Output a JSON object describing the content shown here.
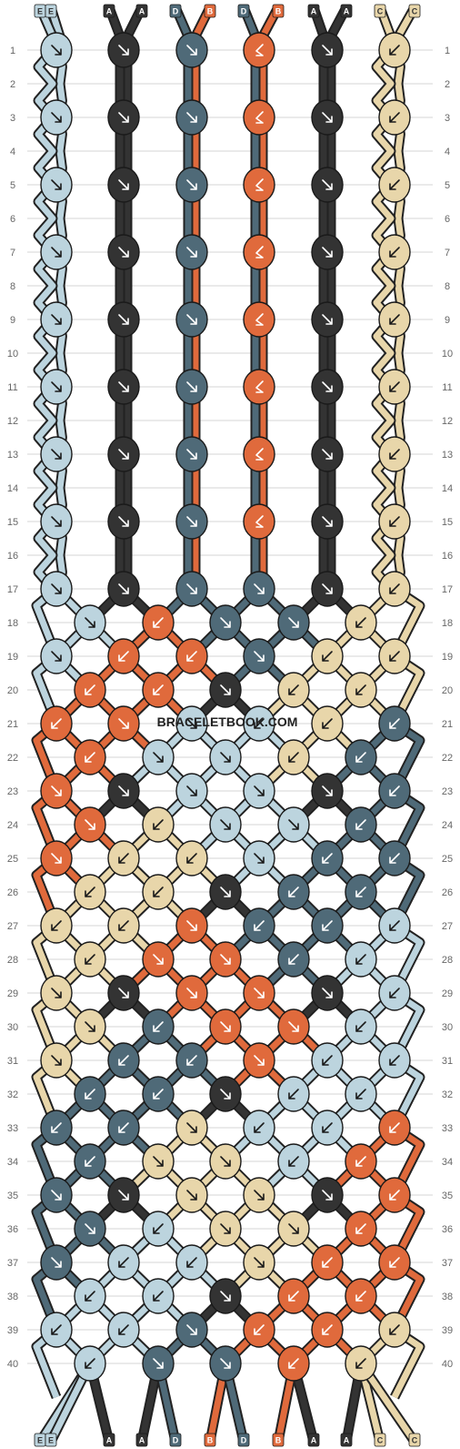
{
  "watermark": "BRACELETBOOK.COM",
  "colors": {
    "E": "#bcd4de",
    "A": "#333333",
    "D": "#4f6a78",
    "B": "#e06a3c",
    "C": "#e8d6aa"
  },
  "strands_top": [
    "E",
    "E",
    "A",
    "A",
    "D",
    "B",
    "D",
    "B",
    "A",
    "A",
    "C",
    "C"
  ],
  "strands_bottom": [
    "E",
    "E",
    "A",
    "A",
    "D",
    "B",
    "D",
    "B",
    "A",
    "A",
    "C",
    "C"
  ],
  "rows": [
    "1",
    "2",
    "3",
    "4",
    "5",
    "6",
    "7",
    "8",
    "9",
    "10",
    "11",
    "12",
    "13",
    "14",
    "15",
    "16",
    "17",
    "18",
    "19",
    "20",
    "21",
    "22",
    "23",
    "24",
    "25",
    "26",
    "27",
    "28",
    "29",
    "30",
    "31",
    "32",
    "33",
    "34",
    "35",
    "36",
    "37",
    "38",
    "39",
    "40"
  ],
  "top_section": {
    "knot_columns": [
      "E",
      "A",
      "D",
      "B",
      "A",
      "C"
    ],
    "directions": [
      "f",
      "f",
      "f",
      "fb",
      "f",
      "b"
    ]
  },
  "knot_rows": {
    "17": [
      [
        "E",
        "f"
      ],
      [
        "A",
        "f"
      ],
      [
        "D",
        "f"
      ],
      [
        "D",
        "f"
      ],
      [
        "A",
        "f"
      ],
      [
        "C",
        "b"
      ]
    ],
    "18": [
      [
        "E",
        "f"
      ],
      [
        "B",
        "b"
      ],
      [
        "D",
        "f"
      ],
      [
        "D",
        "f"
      ],
      [
        "C",
        "b"
      ]
    ],
    "19": [
      [
        "E",
        "f"
      ],
      [
        "B",
        "b"
      ],
      [
        "B",
        "b"
      ],
      [
        "D",
        "f"
      ],
      [
        "C",
        "b"
      ],
      [
        "C",
        "b"
      ]
    ],
    "20": [
      [
        "B",
        "b"
      ],
      [
        "B",
        "b"
      ],
      [
        "A",
        "f"
      ],
      [
        "C",
        "b"
      ],
      [
        "C",
        "b"
      ]
    ],
    "21": [
      [
        "B",
        "b"
      ],
      [
        "B",
        "f"
      ],
      [
        "E",
        "f"
      ],
      [
        "E",
        "b"
      ],
      [
        "C",
        "b"
      ],
      [
        "D",
        "b"
      ]
    ],
    "22": [
      [
        "B",
        "b"
      ],
      [
        "E",
        "f"
      ],
      [
        "E",
        "f"
      ],
      [
        "C",
        "b"
      ],
      [
        "D",
        "b"
      ]
    ],
    "23": [
      [
        "B",
        "f"
      ],
      [
        "A",
        "f"
      ],
      [
        "E",
        "f"
      ],
      [
        "E",
        "f"
      ],
      [
        "A",
        "f"
      ],
      [
        "D",
        "b"
      ]
    ],
    "24": [
      [
        "B",
        "f"
      ],
      [
        "C",
        "b"
      ],
      [
        "E",
        "f"
      ],
      [
        "E",
        "f"
      ],
      [
        "D",
        "b"
      ]
    ],
    "25": [
      [
        "B",
        "f"
      ],
      [
        "C",
        "b"
      ],
      [
        "C",
        "b"
      ],
      [
        "E",
        "f"
      ],
      [
        "D",
        "b"
      ],
      [
        "D",
        "b"
      ]
    ],
    "26": [
      [
        "C",
        "b"
      ],
      [
        "C",
        "b"
      ],
      [
        "A",
        "f"
      ],
      [
        "D",
        "b"
      ],
      [
        "D",
        "b"
      ]
    ],
    "27": [
      [
        "C",
        "b"
      ],
      [
        "C",
        "b"
      ],
      [
        "B",
        "f"
      ],
      [
        "D",
        "b"
      ],
      [
        "D",
        "b"
      ],
      [
        "E",
        "b"
      ]
    ],
    "28": [
      [
        "C",
        "b"
      ],
      [
        "B",
        "f"
      ],
      [
        "B",
        "f"
      ],
      [
        "D",
        "b"
      ],
      [
        "E",
        "b"
      ]
    ],
    "29": [
      [
        "C",
        "f"
      ],
      [
        "A",
        "f"
      ],
      [
        "B",
        "f"
      ],
      [
        "B",
        "f"
      ],
      [
        "A",
        "f"
      ],
      [
        "E",
        "b"
      ]
    ],
    "30": [
      [
        "C",
        "f"
      ],
      [
        "D",
        "b"
      ],
      [
        "B",
        "f"
      ],
      [
        "B",
        "f"
      ],
      [
        "E",
        "b"
      ]
    ],
    "31": [
      [
        "C",
        "f"
      ],
      [
        "D",
        "b"
      ],
      [
        "D",
        "b"
      ],
      [
        "B",
        "f"
      ],
      [
        "E",
        "b"
      ],
      [
        "E",
        "b"
      ]
    ],
    "32": [
      [
        "D",
        "b"
      ],
      [
        "D",
        "b"
      ],
      [
        "A",
        "f"
      ],
      [
        "E",
        "b"
      ],
      [
        "E",
        "b"
      ]
    ],
    "33": [
      [
        "D",
        "b"
      ],
      [
        "D",
        "b"
      ],
      [
        "C",
        "f"
      ],
      [
        "E",
        "b"
      ],
      [
        "E",
        "b"
      ],
      [
        "B",
        "b"
      ]
    ],
    "34": [
      [
        "D",
        "b"
      ],
      [
        "C",
        "f"
      ],
      [
        "C",
        "f"
      ],
      [
        "E",
        "b"
      ],
      [
        "B",
        "b"
      ]
    ],
    "35": [
      [
        "D",
        "f"
      ],
      [
        "A",
        "f"
      ],
      [
        "C",
        "f"
      ],
      [
        "C",
        "f"
      ],
      [
        "A",
        "f"
      ],
      [
        "B",
        "b"
      ]
    ],
    "36": [
      [
        "D",
        "f"
      ],
      [
        "E",
        "b"
      ],
      [
        "C",
        "f"
      ],
      [
        "C",
        "f"
      ],
      [
        "B",
        "b"
      ]
    ],
    "37": [
      [
        "D",
        "f"
      ],
      [
        "E",
        "b"
      ],
      [
        "E",
        "b"
      ],
      [
        "C",
        "f"
      ],
      [
        "B",
        "b"
      ],
      [
        "B",
        "b"
      ]
    ],
    "38": [
      [
        "E",
        "b"
      ],
      [
        "E",
        "b"
      ],
      [
        "A",
        "f"
      ],
      [
        "B",
        "b"
      ],
      [
        "B",
        "b"
      ]
    ],
    "39": [
      [
        "E",
        "b"
      ],
      [
        "E",
        "b"
      ],
      [
        "D",
        "f"
      ],
      [
        "B",
        "b"
      ],
      [
        "B",
        "b"
      ],
      [
        "C",
        "b"
      ]
    ],
    "40": [
      [
        "E",
        "b"
      ],
      [
        "D",
        "f"
      ],
      [
        "D",
        "f"
      ],
      [
        "B",
        "b"
      ],
      [
        "C",
        "b"
      ]
    ]
  }
}
